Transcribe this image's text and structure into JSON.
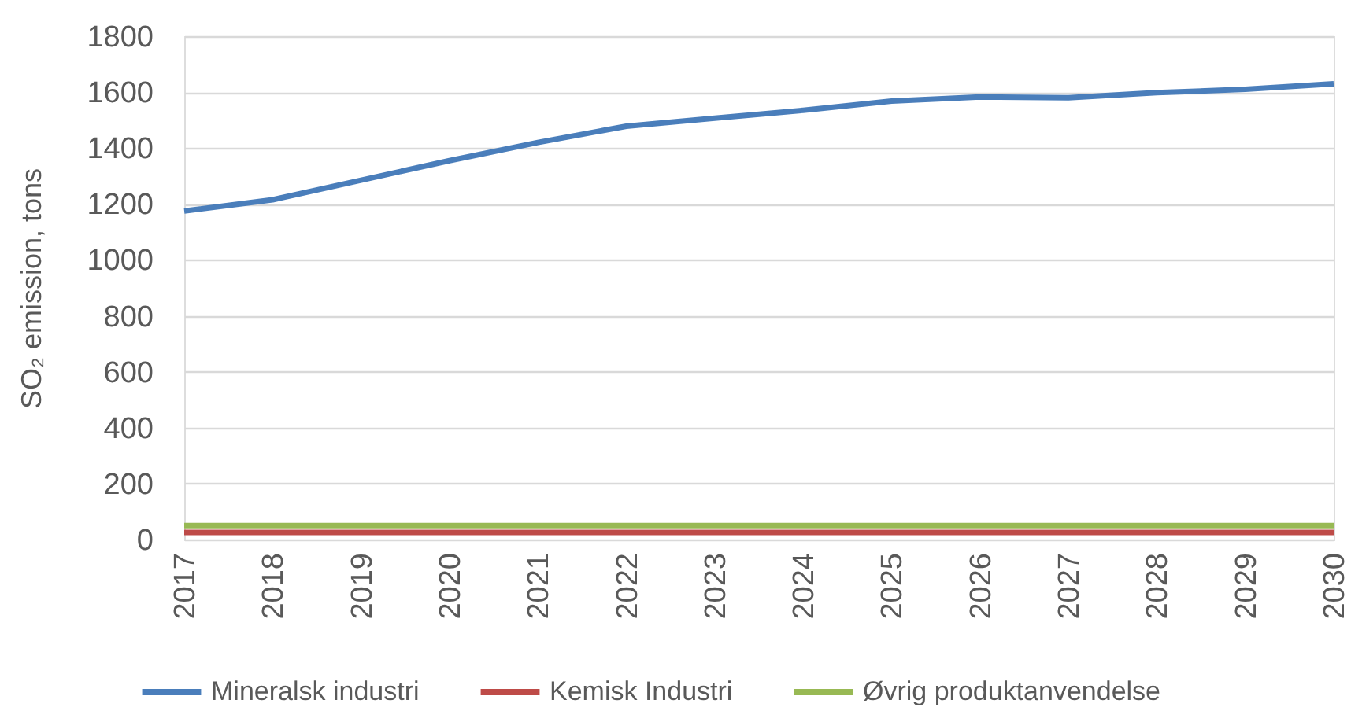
{
  "chart_data": {
    "type": "line",
    "ylabel": "SO₂ emission, tons",
    "categories": [
      "2017",
      "2018",
      "2019",
      "2020",
      "2021",
      "2022",
      "2023",
      "2024",
      "2025",
      "2026",
      "2027",
      "2028",
      "2029",
      "2030"
    ],
    "series": [
      {
        "name": "Mineralsk industri",
        "color": "#4a7ebb",
        "values": [
          1175,
          1215,
          1285,
          1355,
          1420,
          1478,
          1507,
          1535,
          1568,
          1583,
          1580,
          1598,
          1610,
          1630
        ]
      },
      {
        "name": "Kemisk Industri",
        "color": "#be4b48",
        "values": [
          25,
          25,
          25,
          25,
          25,
          25,
          25,
          25,
          25,
          25,
          25,
          25,
          25,
          25
        ]
      },
      {
        "name": "Øvrig produktanvendelse",
        "color": "#98b954",
        "values": [
          50,
          50,
          50,
          50,
          50,
          50,
          50,
          50,
          50,
          50,
          50,
          50,
          50,
          50
        ]
      }
    ],
    "ylim": [
      0,
      1800
    ],
    "yticks": [
      0,
      200,
      400,
      600,
      800,
      1000,
      1200,
      1400,
      1600,
      1800
    ],
    "grid": "y",
    "legend": "bottom"
  }
}
